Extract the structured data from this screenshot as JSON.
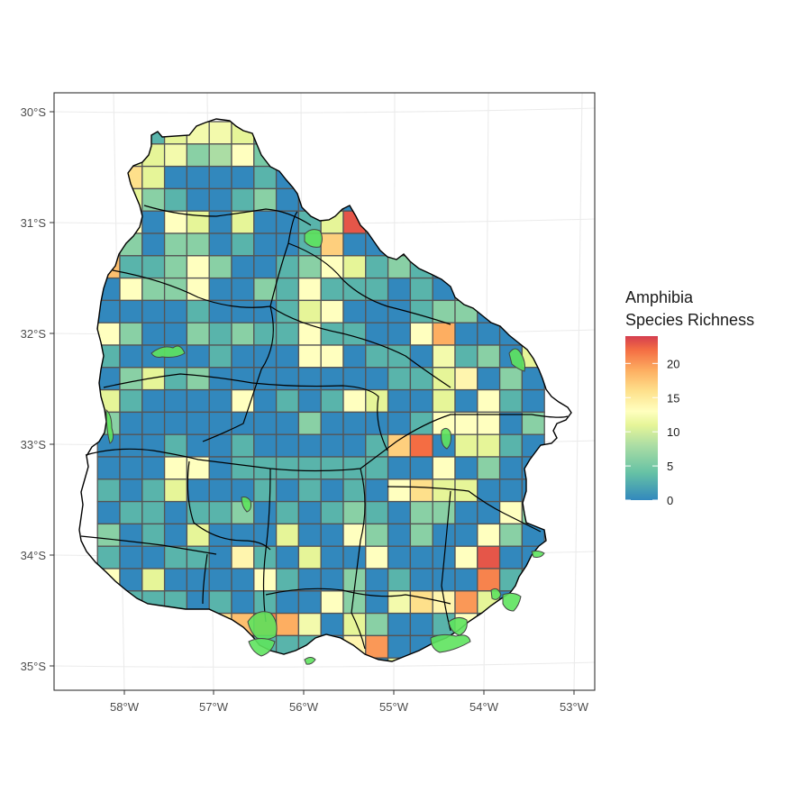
{
  "map": {
    "x_axis": {
      "ticks": [
        "58°W",
        "57°W",
        "56°W",
        "55°W",
        "54°W",
        "53°W"
      ]
    },
    "y_axis": {
      "ticks": [
        "30°S",
        "31°S",
        "32°S",
        "33°S",
        "34°S",
        "35°S"
      ]
    },
    "lon_range": [
      -58.75,
      -52.85
    ],
    "lat_range": [
      -35.22,
      -29.85
    ]
  },
  "legend": {
    "title_line1": "Amphibia",
    "title_line2": "Species Richness",
    "ticks": [
      "20",
      "15",
      "10",
      "5",
      "0"
    ],
    "min": 0,
    "max": 24,
    "stops": [
      {
        "value": 0,
        "color": "#3288bd"
      },
      {
        "value": 4,
        "color": "#66c2a5"
      },
      {
        "value": 8,
        "color": "#abdda4"
      },
      {
        "value": 11,
        "color": "#e6f598"
      },
      {
        "value": 13,
        "color": "#ffffbf"
      },
      {
        "value": 16,
        "color": "#fee08b"
      },
      {
        "value": 19,
        "color": "#fdae61"
      },
      {
        "value": 22,
        "color": "#f46d43"
      },
      {
        "value": 24,
        "color": "#d53e4f"
      }
    ]
  },
  "colors": {
    "protected_area_fill": "#5ee35e",
    "grid_cell_stroke": "#555555",
    "boundary_stroke": "#000000"
  }
}
